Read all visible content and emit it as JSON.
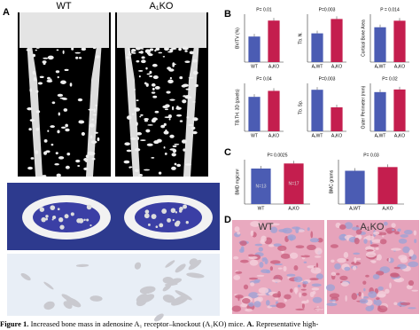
{
  "panel_a": {
    "label": "A",
    "images": [
      {
        "label": "WT"
      },
      {
        "label": "A₁KO"
      }
    ]
  },
  "panel_b": {
    "label": "B",
    "charts": [
      {
        "type": "bar",
        "ylabel": "BV/TV (%)",
        "pvalue": "P= 0.01",
        "categories": [
          "WT",
          "A₁KO"
        ],
        "values": [
          8,
          13
        ],
        "colors": [
          "#4b5cb3",
          "#c41e4e"
        ],
        "ylim": [
          0,
          15
        ]
      },
      {
        "type": "bar",
        "ylabel": "Tb. N.",
        "pvalue": "P=0.003",
        "categories": [
          "A₁WT",
          "A₁KO"
        ],
        "values": [
          1.8,
          2.7
        ],
        "colors": [
          "#4b5cb3",
          "#c41e4e"
        ],
        "ylim": [
          0,
          3
        ]
      },
      {
        "type": "bar",
        "ylabel": "Cortical Bone Area",
        "pvalue": "P = 0.014",
        "categories": [
          "A₁WT",
          "A₁KO"
        ],
        "values": [
          0.8,
          0.95
        ],
        "colors": [
          "#4b5cb3",
          "#c41e4e"
        ],
        "ylim": [
          0,
          1.1
        ]
      },
      {
        "type": "bar",
        "ylabel": "TB.TH. 3D (pixels)",
        "pvalue": "P= 0.04",
        "categories": [
          "WT",
          "A₁KO"
        ],
        "values": [
          2.3,
          2.7
        ],
        "colors": [
          "#4b5cb3",
          "#c41e4e"
        ],
        "ylim": [
          0,
          3.2
        ]
      },
      {
        "type": "bar",
        "ylabel": "Tb. Sp.",
        "pvalue": "P=0.003",
        "categories": [
          "A₁WT",
          "A₁KO"
        ],
        "values": [
          2.6,
          1.5
        ],
        "colors": [
          "#4b5cb3",
          "#c41e4e"
        ],
        "ylim": [
          0,
          3
        ]
      },
      {
        "type": "bar",
        "ylabel": "Outer Perimeter (mm)",
        "pvalue": "P= 0.02",
        "categories": [
          "A₁WT",
          "A₁KO"
        ],
        "values": [
          4.5,
          4.8
        ],
        "colors": [
          "#4b5cb3",
          "#c41e4e"
        ],
        "ylim": [
          0,
          5.5
        ]
      }
    ]
  },
  "panel_c": {
    "label": "C",
    "charts": [
      {
        "type": "bar",
        "ylabel": "BMD mg/cm²",
        "pvalue": "P= 0.0025",
        "categories": [
          "WT",
          "A₁KO"
        ],
        "values": [
          56,
          64
        ],
        "bar_labels": [
          "N=13",
          "N=17"
        ],
        "colors": [
          "#4b5cb3",
          "#c41e4e"
        ],
        "ylim": [
          0,
          70
        ]
      },
      {
        "type": "bar",
        "ylabel": "BMC grams",
        "pvalue": "P= 0.03",
        "categories": [
          "A₁WT",
          "A₁KO"
        ],
        "values": [
          0.45,
          0.5
        ],
        "colors": [
          "#4b5cb3",
          "#c41e4e"
        ],
        "ylim": [
          0,
          0.6
        ]
      }
    ]
  },
  "panel_d": {
    "label": "D",
    "images": [
      {
        "label": "WT"
      },
      {
        "label": "A₁KO"
      }
    ]
  },
  "caption": {
    "figure": "Figure 1.",
    "text": " Increased bone mass in adenosine A₁ receptor–knockout (A₁KO) mice. ",
    "panel": "A.",
    "rest": " Representative high-"
  }
}
